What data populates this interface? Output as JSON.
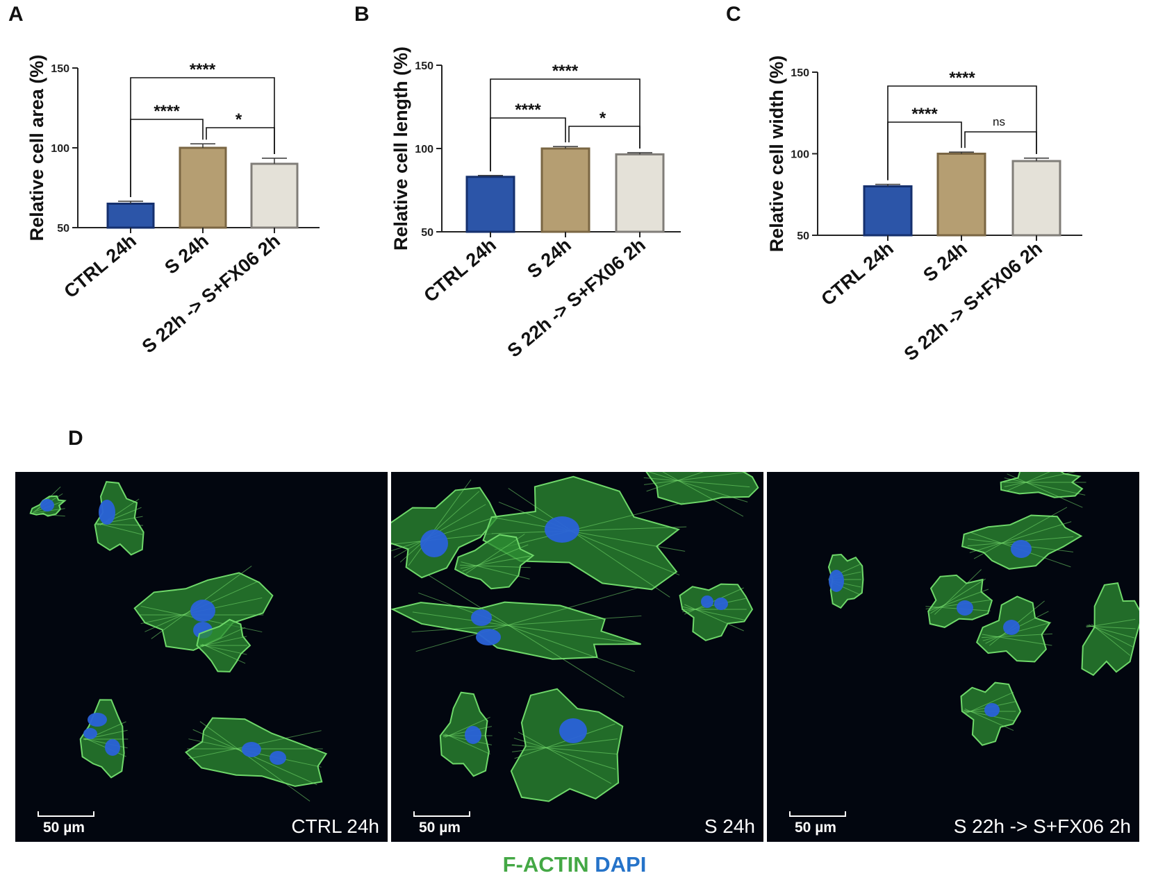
{
  "panel_labels": {
    "a": "A",
    "b": "B",
    "c": "C",
    "d": "D"
  },
  "colors": {
    "ctrl": "#2c55a8",
    "s24": "#b59e72",
    "s22": "#e4e1d8",
    "actin": "#44a845",
    "dapi": "#2573c9"
  },
  "chart_data": [
    {
      "type": "bar",
      "panel": "A",
      "categories": [
        "CTRL 24h",
        "S 24h",
        "S 22h -> S+FX06 2h"
      ],
      "values": [
        65,
        100,
        90
      ],
      "errors": [
        1.5,
        2.5,
        3.5
      ],
      "ylabel": "Relative cell area (%)",
      "ylim": [
        50,
        150
      ],
      "yticks": [
        "50",
        "100",
        "150"
      ],
      "comparisons": [
        {
          "between": [
            "CTRL 24h",
            "S 24h"
          ],
          "label": "****"
        },
        {
          "between": [
            "S 24h",
            "S 22h -> S+FX06 2h"
          ],
          "label": "*"
        },
        {
          "between": [
            "CTRL 24h",
            "S 22h -> S+FX06 2h"
          ],
          "label": "****"
        }
      ]
    },
    {
      "type": "bar",
      "panel": "B",
      "categories": [
        "CTRL 24h",
        "S 24h",
        "S 22h -> S+FX06 2h"
      ],
      "values": [
        83,
        100,
        96.5
      ],
      "errors": [
        0.8,
        1.2,
        1.0
      ],
      "ylabel": "Relative cell length (%)",
      "ylim": [
        50,
        150
      ],
      "yticks": [
        "50",
        "100",
        "150"
      ],
      "comparisons": [
        {
          "between": [
            "CTRL 24h",
            "S 24h"
          ],
          "label": "****"
        },
        {
          "between": [
            "S 24h",
            "S 22h -> S+FX06 2h"
          ],
          "label": "*"
        },
        {
          "between": [
            "CTRL 24h",
            "S 22h -> S+FX06 2h"
          ],
          "label": "****"
        }
      ]
    },
    {
      "type": "bar",
      "panel": "C",
      "categories": [
        "CTRL 24h",
        "S 24h",
        "S 22h -> S+FX06 2h"
      ],
      "values": [
        80,
        100,
        95.5
      ],
      "errors": [
        1.2,
        1.0,
        1.8
      ],
      "ylabel": "Relative cell width (%)",
      "ylim": [
        50,
        150
      ],
      "yticks": [
        "50",
        "100",
        "150"
      ],
      "comparisons": [
        {
          "between": [
            "CTRL 24h",
            "S 24h"
          ],
          "label": "****"
        },
        {
          "between": [
            "S 24h",
            "S 22h -> S+FX06 2h"
          ],
          "label": "ns"
        },
        {
          "between": [
            "CTRL 24h",
            "S 22h -> S+FX06 2h"
          ],
          "label": "****"
        }
      ]
    }
  ],
  "micrographs": [
    {
      "caption": "CTRL 24h",
      "scale": "50 µm"
    },
    {
      "caption": "S 24h",
      "scale": "50 µm"
    },
    {
      "caption": "S 22h -> S+FX06 2h",
      "scale": "50 µm"
    }
  ],
  "legend": {
    "actin": "F-ACTIN",
    "dapi": "DAPI"
  }
}
